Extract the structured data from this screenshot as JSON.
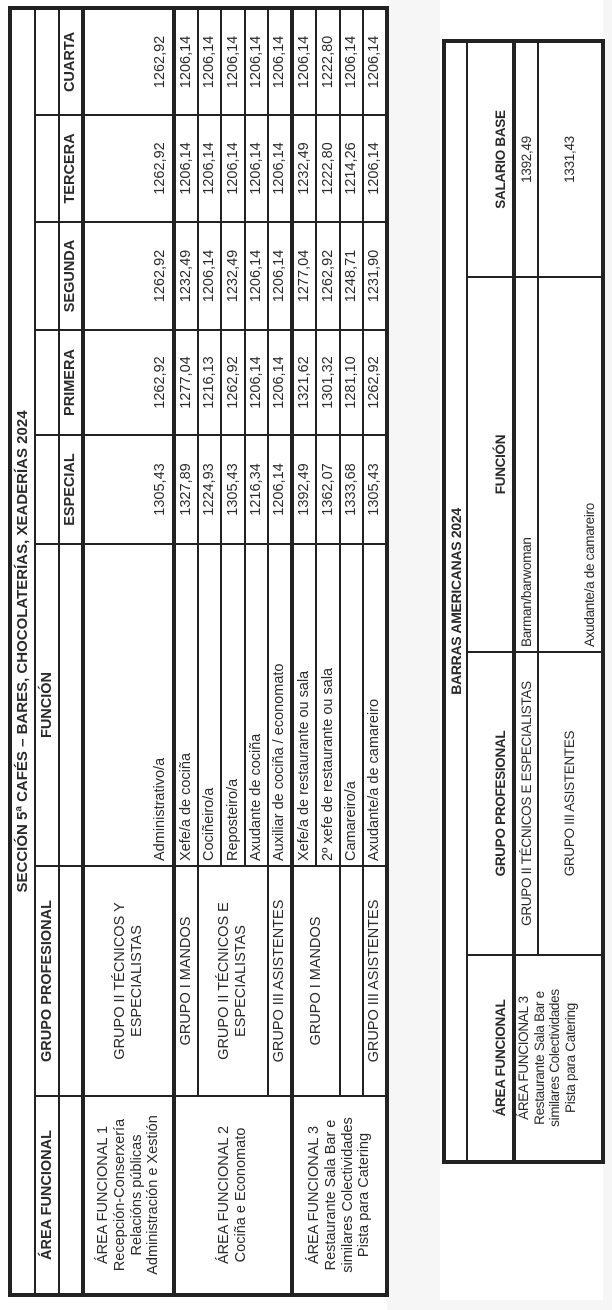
{
  "table1": {
    "title": "SECCIÓN 5ª CAFÉS – BARES, CHOCOLATERÍAS, XEADERÍAS 2024",
    "headers": {
      "area": "ÁREA FUNCIONAL",
      "grupo": "GRUPO PROFESIONAL",
      "funcion": "FUNCIÓN",
      "levels": [
        "ESPECIAL",
        "PRIMERA",
        "SEGUNDA",
        "TERCERA",
        "CUARTA"
      ]
    },
    "areas": [
      [
        "ÁREA FUNCIONAL 1",
        "Recepción-Conserxería",
        "Relacións públicas",
        "Administración e Xestión"
      ],
      [
        "ÁREA FUNCIONAL 2",
        "Cociña e Economato"
      ],
      [
        "ÁREA FUNCIONAL 3",
        "Restaurante Sala Bar e",
        "similares Colectividades",
        "Pista para Catering"
      ]
    ],
    "grupos": [
      [
        "GRUPO II TÉCNICOS Y",
        "ESPECIALISTAS"
      ],
      [
        "GRUPO I MANDOS"
      ],
      [
        "GRUPO II TÉCNICOS E",
        "ESPECIALISTAS"
      ],
      [
        "GRUPO III ASISTENTES"
      ],
      [
        "GRUPO I MANDOS"
      ],
      [
        "GRUPO III ASISTENTES"
      ]
    ],
    "rows": [
      {
        "funcion": "Administrativo/a",
        "values": [
          "1305,43",
          "1262,92",
          "1262,92",
          "1262,92",
          "1262,92"
        ]
      },
      {
        "funcion": "Xefe/a de cociña",
        "values": [
          "1327,89",
          "1277,04",
          "1232,49",
          "1206,14",
          "1206,14"
        ]
      },
      {
        "funcion": "Cociñeiro/a",
        "values": [
          "1224,93",
          "1216,13",
          "1206,14",
          "1206,14",
          "1206,14"
        ]
      },
      {
        "funcion": "Reposteiro/a",
        "values": [
          "1305,43",
          "1262,92",
          "1232,49",
          "1206,14",
          "1206,14"
        ]
      },
      {
        "funcion": "Axudante de cociña",
        "values": [
          "1216,34",
          "1206,14",
          "1206,14",
          "1206,14",
          "1206,14"
        ]
      },
      {
        "funcion": "Auxiliar de cociña / economato",
        "values": [
          "1206,14",
          "1206,14",
          "1206,14",
          "1206,14",
          "1206,14"
        ]
      },
      {
        "funcion": "Xefe/a de restaurante ou sala",
        "values": [
          "1392,49",
          "1321,62",
          "1277,04",
          "1232,49",
          "1206,14"
        ]
      },
      {
        "funcion": "2º xefe de restaurante ou sala",
        "values": [
          "1362,07",
          "1301,32",
          "1262,92",
          "1222,80",
          "1222,80"
        ]
      },
      {
        "funcion": "Camareiro/a",
        "values": [
          "1333,68",
          "1281,10",
          "1248,71",
          "1214,26",
          "1206,14"
        ]
      },
      {
        "funcion": "Axudante/a de camareiro",
        "values": [
          "1305,43",
          "1262,92",
          "1231,90",
          "1206,14",
          "1206,14"
        ]
      }
    ]
  },
  "table2": {
    "title": "BARRAS AMERICANAS 2024",
    "headers": {
      "area": "ÁREA FUNCIONAL",
      "grupo": "GRUPO PROFESIONAL",
      "funcion": "FUNCIÓN",
      "salario": "SALARIO BASE"
    },
    "area": [
      "ÁREA FUNCIONAL 3",
      "Restaurante Sala Bar e",
      "similares Colectividades",
      "Pista para Catering"
    ],
    "rows": [
      {
        "grupo": "GRUPO II TÉCNICOS E ESPECIALISTAS",
        "funcion": "Barman/barwoman",
        "salario": "1392,49"
      },
      {
        "grupo": "GRUPO III ASISTENTES",
        "funcion": "Axudante/a de camareiro",
        "salario": "1331,43"
      }
    ]
  }
}
